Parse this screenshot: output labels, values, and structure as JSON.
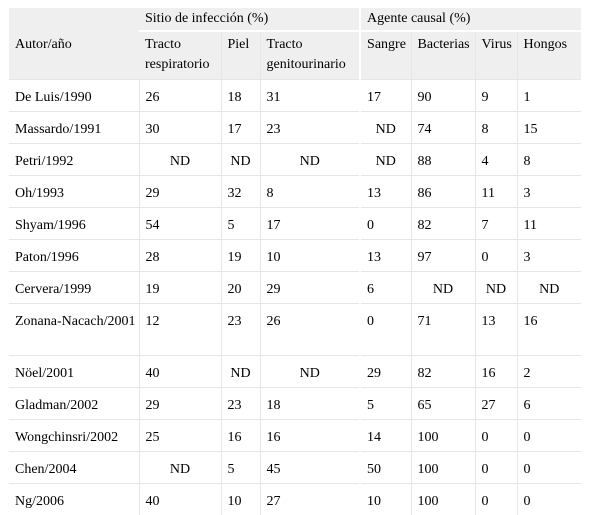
{
  "table": {
    "author_header": "Autor/año",
    "group_site": "Sitio de infección (%)",
    "group_agent": "Agente causal (%)",
    "columns": [
      "Tracto respiratorio",
      "Piel",
      "Tracto genitourinario",
      "Sangre",
      "Bacterias",
      "Virus",
      "Hongos"
    ],
    "rows": [
      {
        "author": "De Luis/1990",
        "values": [
          "26",
          "18",
          "31",
          "17",
          "90",
          "9",
          "1"
        ]
      },
      {
        "author": "Massardo/1991",
        "values": [
          "30",
          "17",
          "23",
          "ND",
          "74",
          "8",
          "15"
        ]
      },
      {
        "author": "Petri/1992",
        "values": [
          "ND",
          "ND",
          "ND",
          "ND",
          "88",
          "4",
          "8"
        ]
      },
      {
        "author": "Oh/1993",
        "values": [
          "29",
          "32",
          "8",
          "13",
          "86",
          "11",
          "3"
        ]
      },
      {
        "author": "Shyam/1996",
        "values": [
          "54",
          "5",
          "17",
          "0",
          "82",
          "7",
          "11"
        ]
      },
      {
        "author": "Paton/1996",
        "values": [
          "28",
          "19",
          "10",
          "13",
          "97",
          "0",
          "3"
        ]
      },
      {
        "author": "Cervera/1999",
        "values": [
          "19",
          "20",
          "29",
          "6",
          "ND",
          "ND",
          "ND"
        ]
      },
      {
        "author": "Zonana-Nacach/2001",
        "values": [
          "12",
          "23",
          "26",
          "0",
          "71",
          "13",
          "16"
        ]
      },
      {
        "author": "Nöel/2001",
        "values": [
          "40",
          "ND",
          "ND",
          "29",
          "82",
          "16",
          "2"
        ]
      },
      {
        "author": "Gladman/2002",
        "values": [
          "29",
          "23",
          "18",
          "5",
          "65",
          "27",
          "6"
        ]
      },
      {
        "author": "Wongchinsri/2002",
        "values": [
          "25",
          "16",
          "16",
          "14",
          "100",
          "0",
          "0"
        ]
      },
      {
        "author": "Chen/2004",
        "values": [
          "ND",
          "5",
          "45",
          "50",
          "100",
          "0",
          "0"
        ]
      },
      {
        "author": "Ng/2006",
        "values": [
          "40",
          "10",
          "27",
          "10",
          "100",
          "0",
          "0"
        ]
      }
    ]
  }
}
